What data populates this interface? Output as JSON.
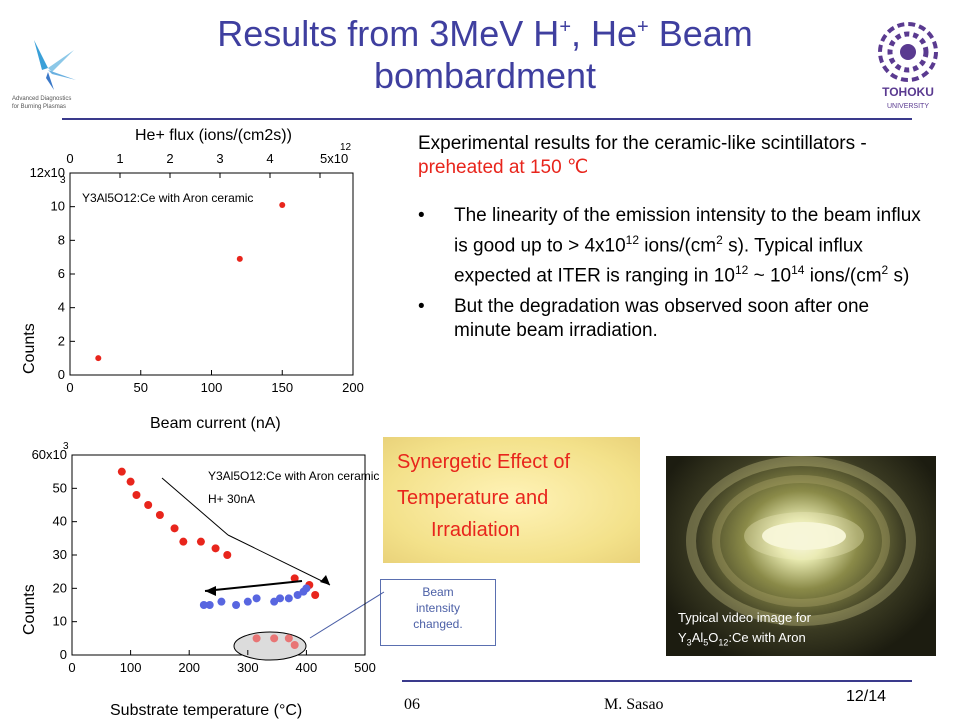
{
  "slide": {
    "title_line1_a": "Results from 3MeV H",
    "title_sup1": "+",
    "title_line1_b": ", He",
    "title_sup2": "+",
    "title_line1_c": " Beam",
    "title_line2": "bombardment",
    "left_logo_text": [
      "Advanced Diagnostics",
      "for Burning Plasmas"
    ],
    "right_logo_text": [
      "TOHOKU",
      "UNIVERSITY"
    ],
    "intro_a": "Experimental results for the ceramic-like scintillators - ",
    "intro_highlight": "preheated at 150 ℃",
    "bullet_char": "•",
    "bullet1_a": "The linearity of the emission intensity to the beam influx is good up to > 4x10",
    "bullet1_sup1": "12",
    "bullet1_b": " ions/(cm",
    "bullet1_sup2": "2",
    "bullet1_c": " s). Typical influx expected at ITER is ranging in 10",
    "bullet1_sup3": "12",
    "bullet1_d": " ~ 10",
    "bullet1_sup4": "14",
    "bullet1_e": " ions/(cm",
    "bullet1_sup5": "2",
    "bullet1_f": " s)",
    "bullet2": "But the degradation was observed soon after one minute beam irradiation.",
    "synergy_line1": "Synergetic Effect of",
    "synergy_line2": "Temperature and",
    "synergy_line3": "Irradiation",
    "photo_caption_line1": "Typical video image for",
    "photo_caption_line2_a": "Y",
    "photo_caption_sub1": "3",
    "photo_caption_line2_b": "Al",
    "photo_caption_sub2": "5",
    "photo_caption_line2_c": "O",
    "photo_caption_sub3": "12",
    "photo_caption_line2_d": ":Ce with Aron",
    "beam_note_line1": "Beam",
    "beam_note_line2": "intensity",
    "beam_note_line3": "changed.",
    "footer_left": "06",
    "footer_author": "M. Sasao",
    "page_number": "12/14"
  },
  "chart_data": [
    {
      "type": "scatter",
      "top_axis_label": "He+ flux (ions/(cm2s))",
      "top_ticks": [
        "0",
        "1",
        "2",
        "3",
        "4",
        "5x10"
      ],
      "top_exponent": "12",
      "xlabel": "Beam current (nA)",
      "ylabel": "Counts",
      "annotation": "Y3Al5O12:Ce with Aron ceramic",
      "xlim": [
        0,
        200
      ],
      "ylim": [
        0,
        12000
      ],
      "x_ticks": [
        "0",
        "50",
        "100",
        "150",
        "200"
      ],
      "y_ticks": [
        "0",
        "2",
        "4",
        "6",
        "8",
        "10",
        "12x10"
      ],
      "y_exponent": "3",
      "marker_color": "#e8251c",
      "points": [
        [
          20,
          1000
        ],
        [
          120,
          6900
        ],
        [
          150,
          10100
        ]
      ]
    },
    {
      "type": "scatter",
      "xlabel": "Substrate temperature (°C)",
      "ylabel": "Counts",
      "annotation_line1": "Y3Al5O12:Ce with Aron ceramic",
      "annotation_line2": "H+ 30nA",
      "xlim": [
        0,
        500
      ],
      "ylim": [
        0,
        60000
      ],
      "x_ticks": [
        "0",
        "100",
        "200",
        "300",
        "400",
        "500"
      ],
      "y_ticks": [
        "0",
        "10",
        "20",
        "30",
        "40",
        "50",
        "60x10"
      ],
      "y_exponent": "3",
      "series": [
        {
          "color": "#e8251c",
          "points": [
            [
              85,
              55000
            ],
            [
              100,
              52000
            ],
            [
              110,
              48000
            ],
            [
              130,
              45000
            ],
            [
              150,
              42000
            ],
            [
              175,
              38000
            ],
            [
              190,
              34000
            ],
            [
              220,
              34000
            ],
            [
              245,
              32000
            ],
            [
              265,
              30000
            ],
            [
              380,
              23000
            ],
            [
              405,
              21000
            ],
            [
              415,
              18000
            ]
          ]
        },
        {
          "color": "#5866e0",
          "points": [
            [
              225,
              15000
            ],
            [
              235,
              15000
            ],
            [
              255,
              16000
            ],
            [
              280,
              15000
            ],
            [
              300,
              16000
            ],
            [
              315,
              17000
            ],
            [
              345,
              16000
            ],
            [
              355,
              17000
            ],
            [
              370,
              17000
            ],
            [
              385,
              18000
            ],
            [
              395,
              19000
            ],
            [
              400,
              20000
            ]
          ]
        },
        {
          "color": "#e87575",
          "points": [
            [
              315,
              5000
            ],
            [
              345,
              5000
            ],
            [
              370,
              5000
            ],
            [
              380,
              3000
            ]
          ]
        }
      ]
    }
  ]
}
